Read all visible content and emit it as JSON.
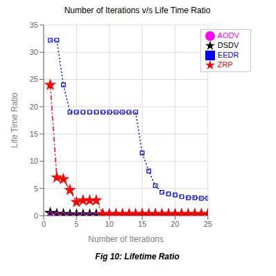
{
  "chart_data": {
    "type": "line",
    "title": "Number of Iterations v/s Life Time Ratio",
    "x_label": "Number of Iterations",
    "y_label": "Life Time Ratio",
    "annotations": [
      "Fig 10: Lifetime Ratio"
    ],
    "x": [
      1,
      2,
      3,
      4,
      5,
      6,
      7,
      8,
      9,
      10,
      11,
      12,
      13,
      14,
      15,
      16,
      17,
      18,
      19,
      20,
      21,
      22,
      23,
      24,
      25
    ],
    "series": [
      {
        "name": "DSDV",
        "color": "black",
        "marker": "star",
        "line_style": "dashdot",
        "values": [
          0.5,
          0.3,
          0.3,
          0.2,
          0.2,
          0.2,
          0.2,
          0.2,
          0.2,
          0.2,
          0.2,
          0.2,
          0.2,
          0.2,
          0.2,
          0.2,
          0.2,
          0.2,
          0.2,
          0.2,
          0.2,
          0.2,
          0.2,
          0.2,
          0.2
        ]
      },
      {
        "name": "AODV",
        "color": "magenta",
        "marker": "circle",
        "line_style": "dashed",
        "values": [
          0.4,
          0.2,
          0.15,
          0.15,
          0.15,
          0.1,
          0.1,
          0.1,
          0.1,
          0.1,
          0.1,
          0.1,
          0.1,
          0.1,
          0.1,
          0.1,
          0.1,
          0.1,
          0.1,
          0.1,
          0.1,
          0.1,
          0.1,
          0.1,
          0.1
        ]
      },
      {
        "name": "ZRP",
        "color": "red",
        "marker": "star",
        "line_style": "dashdot",
        "values": [
          24.0,
          7.0,
          6.7,
          4.7,
          2.5,
          2.8,
          2.8,
          2.8,
          0.3,
          0.3,
          0.3,
          0.3,
          0.3,
          0.3,
          0.3,
          0.3,
          0.3,
          0.3,
          0.3,
          0.3,
          0.3,
          0.3,
          0.3,
          0.3,
          0.3
        ]
      },
      {
        "name": "EEDR",
        "color": "blue",
        "marker": "square",
        "line_style": "dotted",
        "values": [
          32.2,
          32.2,
          24.0,
          19.0,
          19.0,
          19.0,
          19.0,
          19.0,
          19.0,
          19.0,
          19.0,
          19.0,
          19.0,
          19.0,
          11.5,
          8.2,
          5.5,
          4.3,
          4.0,
          3.8,
          3.5,
          3.3,
          3.3,
          3.2,
          3.2
        ]
      }
    ],
    "xlim": [
      0,
      25
    ],
    "ylim": [
      0,
      35
    ],
    "xticks": [
      0,
      5,
      10,
      15,
      20,
      25
    ],
    "yticks": [
      0,
      5,
      10,
      15,
      20,
      25,
      30,
      35
    ],
    "grid": true,
    "legend": "upper right"
  }
}
